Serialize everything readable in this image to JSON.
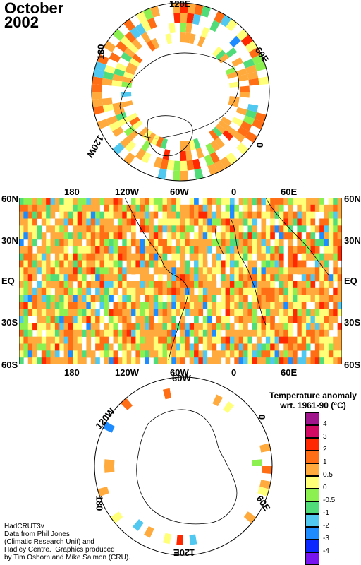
{
  "title": {
    "month": "October",
    "year": "2002"
  },
  "arctic": {
    "labels": {
      "top": "120E",
      "right": "60E",
      "bottom_right": "0",
      "left": "180",
      "bottom_left": "120W"
    }
  },
  "world": {
    "top_lon_labels": [
      "180",
      "120W",
      "60W",
      "0",
      "60E"
    ],
    "bottom_lon_labels": [
      "180",
      "120W",
      "60W",
      "0",
      "60E"
    ],
    "lat_labels": [
      "60N",
      "30N",
      "EQ",
      "30S",
      "60S"
    ]
  },
  "antarctic": {
    "labels": {
      "top": "60W",
      "right": "0",
      "bottom_right": "60E",
      "bottom": "120E",
      "left": "180",
      "top_left": "120W"
    }
  },
  "legend": {
    "title_line1": "Temperature anomaly",
    "title_line2": "wrt. 1961-90  (°C)",
    "bins": [
      {
        "label": "4",
        "color": "#a0148c"
      },
      {
        "label": "3",
        "color": "#d20a64"
      },
      {
        "label": "2",
        "color": "#ff2800"
      },
      {
        "label": "1",
        "color": "#ff6e14"
      },
      {
        "label": "0.5",
        "color": "#ffaa3c"
      },
      {
        "label": "0",
        "color": "#ffff78"
      },
      {
        "label": "-0.5",
        "color": "#8cf050"
      },
      {
        "label": "-1",
        "color": "#50dc78"
      },
      {
        "label": "-2",
        "color": "#50c8f0"
      },
      {
        "label": "-3",
        "color": "#1e8cff"
      },
      {
        "label": "-4",
        "color": "#0a28ff"
      },
      {
        "label": "",
        "color": "#7814f0"
      }
    ]
  },
  "credits": "HadCRUT3v\nData from Phil Jones\n(Climatic Research Unit) and\nHadley Centre.  Graphics produced\nby Tim Osborn and Mike Salmon (CRU)."
}
